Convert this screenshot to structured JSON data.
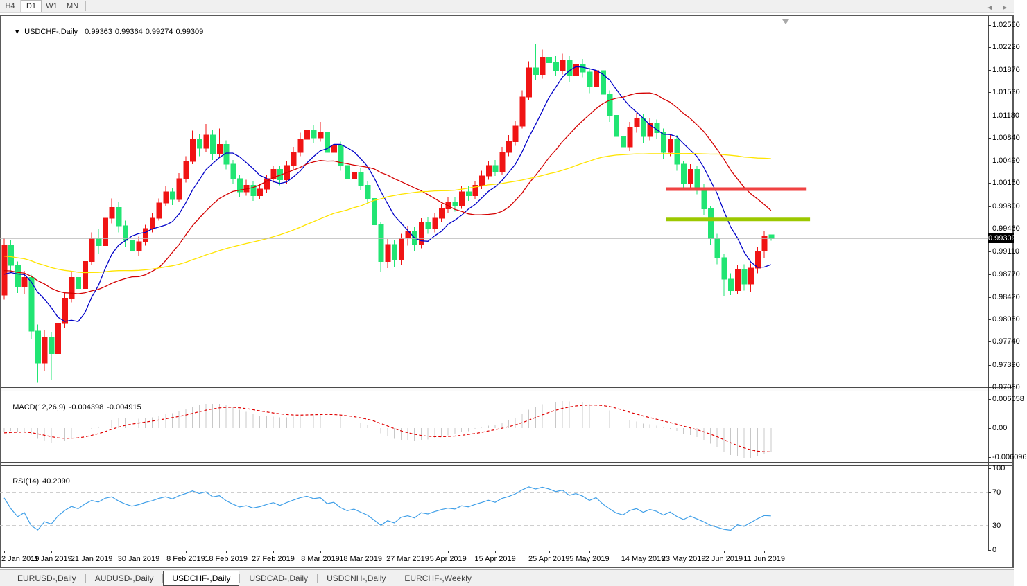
{
  "toolbar": {
    "timeframes": [
      {
        "label": "H4",
        "active": false
      },
      {
        "label": "D1",
        "active": true
      },
      {
        "label": "W1",
        "active": false
      },
      {
        "label": "MN",
        "active": false
      }
    ]
  },
  "main_panel": {
    "dropdown_arrow": "▼",
    "symbol_title": "USDCHF-,Daily",
    "open": "0.99363",
    "high": "0.99364",
    "low": "0.99274",
    "close": "0.99309",
    "price_badge": "0.99309"
  },
  "macd_panel": {
    "label": "MACD(12,26,9)",
    "main_value": "-0.004398",
    "signal_value": "-0.004915",
    "axis_ticks": [
      "0.006058",
      "0.00",
      "-0.006096"
    ]
  },
  "rsi_panel": {
    "label": "RSI(14)",
    "value": "40.2090",
    "axis_ticks": [
      "100",
      "70",
      "30",
      "0"
    ]
  },
  "y_axis": {
    "labels": [
      "1.02560",
      "1.02220",
      "1.01870",
      "1.01530",
      "1.01180",
      "1.00840",
      "1.00490",
      "1.00150",
      "0.99800",
      "0.99460",
      "0.99110",
      "0.98770",
      "0.98420",
      "0.98080",
      "0.97740",
      "0.97390",
      "0.97050"
    ]
  },
  "x_axis": {
    "labels": [
      "2 Jan 2019",
      "11 Jan 2019",
      "21 Jan 2019",
      "30 Jan 2019",
      "8 Feb 2019",
      "18 Feb 2019",
      "27 Feb 2019",
      "8 Mar 2019",
      "18 Mar 2019",
      "27 Mar 2019",
      "5 Apr 2019",
      "15 Apr 2019",
      "25 Apr 2019",
      "5 May 2019",
      "14 May 2019",
      "23 May 2019",
      "2 Jun 2019",
      "11 Jun 2019"
    ]
  },
  "tabs": {
    "items": [
      {
        "label": "EURUSD-,Daily",
        "active": false
      },
      {
        "label": "AUDUSD-,Daily",
        "active": false
      },
      {
        "label": "USDCHF-,Daily",
        "active": true
      },
      {
        "label": "USDCAD-,Daily",
        "active": false
      },
      {
        "label": "USDCNH-,Daily",
        "active": false
      },
      {
        "label": "EURCHF-,Weekly",
        "active": false
      }
    ],
    "prev_arrow": "◄",
    "next_arrow": "►"
  },
  "colors": {
    "bull": "#f01414",
    "bear": "#21e573",
    "ma_fast": "#0000c8",
    "ma_mid": "#d40000",
    "ma_slow": "#ffe400",
    "macd_bar": "#c8c8c8",
    "macd_signal": "#e00000",
    "rsi_line": "#3f9fe8",
    "rsi_level": "#c8c8c8",
    "resistance_line": "#f04242",
    "support_line": "#9cc800",
    "bid_line": "#b8b8b8",
    "badge_bg": "#000000"
  },
  "chart_data": {
    "type": "candlestick",
    "symbol": "USDCHF",
    "timeframe": "Daily",
    "title_ohlc": {
      "open": 0.99363,
      "high": 0.99364,
      "low": 0.99274,
      "close": 0.99309
    },
    "bid_price": 0.99309,
    "y_range_hint": {
      "top_price": 1.0262,
      "bottom_price": 0.9698
    },
    "x_tick_indices": [
      0,
      7,
      13,
      20,
      27,
      33,
      40,
      47,
      53,
      60,
      66,
      73,
      81,
      87,
      95,
      101,
      107,
      113
    ],
    "moving_averages": [
      {
        "name": "ma-fast-line",
        "period": 8,
        "color_key": "ma_fast"
      },
      {
        "name": "ma-mid-line",
        "period": 20,
        "color_key": "ma_mid"
      },
      {
        "name": "ma-slow-line",
        "period": 50,
        "color_key": "ma_slow"
      }
    ],
    "horizontal_lines": [
      {
        "name": "resistance-hline",
        "price": 1.0006,
        "from_index": 98.4,
        "to_index": 119.3,
        "color_key": "resistance_line",
        "thickness": 5
      },
      {
        "name": "support-hline",
        "price": 0.996,
        "from_index": 98.4,
        "to_index": 119.8,
        "color_key": "support_line",
        "thickness": 5
      }
    ],
    "indicators": {
      "macd": {
        "fast": 12,
        "slow": 26,
        "signal": 9,
        "last_main": -0.004398,
        "last_signal": -0.004915,
        "axis_values": [
          0.006058,
          0,
          -0.006096
        ]
      },
      "rsi": {
        "period": 14,
        "last_value": 40.209,
        "levels": [
          70,
          30
        ],
        "axis_values": [
          100,
          70,
          30,
          0
        ]
      }
    },
    "candles": [
      [
        0.9845,
        0.9932,
        0.9838,
        0.992
      ],
      [
        0.992,
        0.9928,
        0.9878,
        0.989
      ],
      [
        0.989,
        0.9896,
        0.9848,
        0.9858
      ],
      [
        0.9858,
        0.9882,
        0.9846,
        0.9872
      ],
      [
        0.9872,
        0.9876,
        0.9778,
        0.979
      ],
      [
        0.979,
        0.98,
        0.9712,
        0.9742
      ],
      [
        0.9742,
        0.9792,
        0.973,
        0.978
      ],
      [
        0.978,
        0.9788,
        0.9716,
        0.9756
      ],
      [
        0.9756,
        0.981,
        0.975,
        0.9802
      ],
      [
        0.9802,
        0.9848,
        0.9795,
        0.984
      ],
      [
        0.984,
        0.988,
        0.9834,
        0.9872
      ],
      [
        0.9872,
        0.9878,
        0.9844,
        0.9855
      ],
      [
        0.9855,
        0.9902,
        0.985,
        0.9896
      ],
      [
        0.9896,
        0.994,
        0.989,
        0.9932
      ],
      [
        0.9932,
        0.9946,
        0.9908,
        0.992
      ],
      [
        0.992,
        0.997,
        0.9914,
        0.9962
      ],
      [
        0.9962,
        0.9992,
        0.9954,
        0.9978
      ],
      [
        0.9978,
        0.9986,
        0.994,
        0.995
      ],
      [
        0.995,
        0.9958,
        0.9918,
        0.9928
      ],
      [
        0.9928,
        0.9936,
        0.99,
        0.9912
      ],
      [
        0.9912,
        0.9934,
        0.9904,
        0.9926
      ],
      [
        0.9926,
        0.9952,
        0.992,
        0.9946
      ],
      [
        0.9946,
        0.997,
        0.994,
        0.9962
      ],
      [
        0.9962,
        0.9992,
        0.9958,
        0.9985
      ],
      [
        0.9985,
        1.001,
        0.998,
        1.0002
      ],
      [
        1.0002,
        1.0008,
        0.9982,
        0.999
      ],
      [
        0.999,
        1.003,
        0.9986,
        1.0022
      ],
      [
        1.0022,
        1.0056,
        1.0016,
        1.0048
      ],
      [
        1.0048,
        1.0095,
        1.0044,
        1.0082
      ],
      [
        1.0082,
        1.009,
        1.0056,
        1.0068
      ],
      [
        1.0068,
        1.0105,
        1.0062,
        1.0088
      ],
      [
        1.0088,
        1.0096,
        1.005,
        1.006
      ],
      [
        1.006,
        1.0098,
        1.0054,
        1.0074
      ],
      [
        1.0074,
        1.008,
        1.0036,
        1.0044
      ],
      [
        1.0044,
        1.005,
        1.0014,
        1.0022
      ],
      [
        1.0022,
        1.0028,
        0.9994,
        1.0002
      ],
      [
        1.0002,
        1.002,
        0.9996,
        1.0012
      ],
      [
        1.0012,
        1.0018,
        0.9988,
        0.9996
      ],
      [
        0.9996,
        1.0014,
        0.999,
        1.0006
      ],
      [
        1.0006,
        1.0028,
        1.0,
        1.0022
      ],
      [
        1.0022,
        1.0042,
        1.0016,
        1.0036
      ],
      [
        1.0036,
        1.0042,
        1.0012,
        1.002
      ],
      [
        1.002,
        1.0048,
        1.0014,
        1.0042
      ],
      [
        1.0042,
        1.007,
        1.0036,
        1.0062
      ],
      [
        1.0062,
        1.0092,
        1.0056,
        1.0082
      ],
      [
        1.0082,
        1.0112,
        1.0076,
        1.0096
      ],
      [
        1.0096,
        1.0104,
        1.0076,
        1.0084
      ],
      [
        1.0084,
        1.0108,
        1.0078,
        1.0092
      ],
      [
        1.0092,
        1.0098,
        1.0052,
        1.0062
      ],
      [
        1.0062,
        1.0082,
        1.0052,
        1.0072
      ],
      [
        1.0072,
        1.0078,
        1.0034,
        1.0042
      ],
      [
        1.0042,
        1.0048,
        1.0012,
        1.0022
      ],
      [
        1.0022,
        1.004,
        1.0014,
        1.0032
      ],
      [
        1.0032,
        1.0038,
        1.0004,
        1.0012
      ],
      [
        1.0012,
        1.0018,
        0.9984,
        0.9992
      ],
      [
        0.9992,
        0.9996,
        0.9944,
        0.9952
      ],
      [
        0.9952,
        0.9956,
        0.988,
        0.9896
      ],
      [
        0.9896,
        0.993,
        0.9886,
        0.9922
      ],
      [
        0.9922,
        0.9928,
        0.9888,
        0.9898
      ],
      [
        0.9898,
        0.9938,
        0.989,
        0.9932
      ],
      [
        0.9932,
        0.995,
        0.992,
        0.9942
      ],
      [
        0.9942,
        0.9948,
        0.9912,
        0.9922
      ],
      [
        0.9922,
        0.9962,
        0.9916,
        0.9956
      ],
      [
        0.9956,
        0.9964,
        0.9938,
        0.9946
      ],
      [
        0.9946,
        0.997,
        0.994,
        0.9962
      ],
      [
        0.9962,
        0.9984,
        0.9956,
        0.9976
      ],
      [
        0.9976,
        0.9994,
        0.997,
        0.9986
      ],
      [
        0.9986,
        0.9994,
        0.9972,
        0.998
      ],
      [
        0.998,
        1.001,
        0.9976,
        1.0002
      ],
      [
        1.0002,
        1.001,
        0.9988,
        0.9996
      ],
      [
        0.9996,
        1.0018,
        0.999,
        1.0012
      ],
      [
        1.0012,
        1.0034,
        1.0006,
        1.0026
      ],
      [
        1.0026,
        1.0048,
        1.002,
        1.0042
      ],
      [
        1.0042,
        1.005,
        1.0026,
        1.0032
      ],
      [
        1.0032,
        1.007,
        1.0028,
        1.0062
      ],
      [
        1.0062,
        1.0088,
        1.0056,
        1.0078
      ],
      [
        1.0078,
        1.011,
        1.0072,
        1.0102
      ],
      [
        1.0102,
        1.0156,
        1.0098,
        1.0146
      ],
      [
        1.0146,
        1.02,
        1.0142,
        1.019
      ],
      [
        1.019,
        1.0226,
        1.0172,
        1.018
      ],
      [
        1.018,
        1.0218,
        1.0174,
        1.0206
      ],
      [
        1.0206,
        1.0224,
        1.0188,
        1.0198
      ],
      [
        1.0198,
        1.0208,
        1.0178,
        1.0186
      ],
      [
        1.0186,
        1.0212,
        1.018,
        1.0202
      ],
      [
        1.0202,
        1.0208,
        1.0168,
        1.0178
      ],
      [
        1.0178,
        1.022,
        1.0172,
        1.0196
      ],
      [
        1.0196,
        1.0204,
        1.0176,
        1.0184
      ],
      [
        1.0184,
        1.019,
        1.0152,
        1.0162
      ],
      [
        1.0162,
        1.0196,
        1.0156,
        1.0186
      ],
      [
        1.0186,
        1.0192,
        1.0142,
        1.015
      ],
      [
        1.015,
        1.0156,
        1.0108,
        1.0118
      ],
      [
        1.0118,
        1.0124,
        1.0076,
        1.0086
      ],
      [
        1.0086,
        1.0096,
        1.0058,
        1.007
      ],
      [
        1.007,
        1.0108,
        1.0064,
        1.01
      ],
      [
        1.01,
        1.0122,
        1.0092,
        1.0114
      ],
      [
        1.0114,
        1.012,
        1.0076,
        1.0086
      ],
      [
        1.0086,
        1.0114,
        1.008,
        1.0106
      ],
      [
        1.0106,
        1.0112,
        1.0082,
        1.0092
      ],
      [
        1.0092,
        1.0098,
        1.0052,
        1.0062
      ],
      [
        1.0062,
        1.009,
        1.0056,
        1.0082
      ],
      [
        1.0082,
        1.0088,
        1.0034,
        1.0044
      ],
      [
        1.0044,
        1.0048,
        1.0004,
        1.0014
      ],
      [
        1.0014,
        1.0044,
        1.0006,
        1.0036
      ],
      [
        1.0036,
        1.0042,
        0.9998,
        1.0008
      ],
      [
        1.0008,
        1.0014,
        0.9966,
        0.9976
      ],
      [
        0.9976,
        0.998,
        0.9922,
        0.9931
      ],
      [
        0.9931,
        0.9938,
        0.9892,
        0.9902
      ],
      [
        0.9902,
        0.9908,
        0.9843,
        0.9869
      ],
      [
        0.9869,
        0.9878,
        0.9845,
        0.9852
      ],
      [
        0.9852,
        0.989,
        0.9846,
        0.9884
      ],
      [
        0.9884,
        0.9892,
        0.9852,
        0.9862
      ],
      [
        0.9862,
        0.9893,
        0.985,
        0.9886
      ],
      [
        0.9886,
        0.9918,
        0.9878,
        0.9912
      ],
      [
        0.9912,
        0.9942,
        0.9902,
        0.9934
      ],
      [
        0.99363,
        0.99364,
        0.99274,
        0.99309
      ]
    ]
  }
}
